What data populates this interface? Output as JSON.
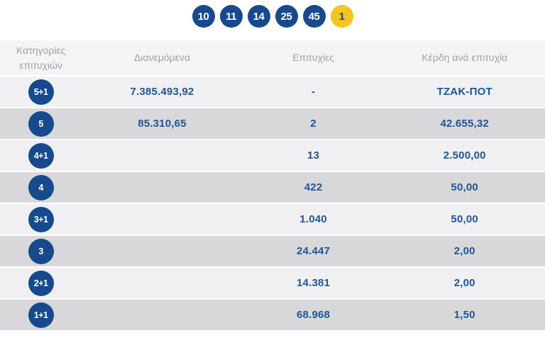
{
  "colors": {
    "navy": "#17498d",
    "yellow": "#f5c41e",
    "text-blue": "#1e5697",
    "header-bg": "#f4f4f5",
    "header-text": "#9fa1a4",
    "row-light": "#f0f0f2",
    "row-dark": "#d8d8da"
  },
  "draw": {
    "numbers": [
      "10",
      "11",
      "14",
      "25",
      "45"
    ],
    "joker": "1"
  },
  "table": {
    "headers": [
      "Κατηγορίες επιτυχιών",
      "Διανεμόμενα",
      "Επιτυχίες",
      "Κέρδη ανά επιτυχία"
    ],
    "rows": [
      {
        "category": "5+1",
        "distributed": "7.385.493,92",
        "wins": "-",
        "prize": "ΤΖΑΚ-ΠΟΤ"
      },
      {
        "category": "5",
        "distributed": "85.310,65",
        "wins": "2",
        "prize": "42.655,32"
      },
      {
        "category": "4+1",
        "distributed": "",
        "wins": "13",
        "prize": "2.500,00"
      },
      {
        "category": "4",
        "distributed": "",
        "wins": "422",
        "prize": "50,00"
      },
      {
        "category": "3+1",
        "distributed": "",
        "wins": "1.040",
        "prize": "50,00"
      },
      {
        "category": "3",
        "distributed": "",
        "wins": "24.447",
        "prize": "2,00"
      },
      {
        "category": "2+1",
        "distributed": "",
        "wins": "14.381",
        "prize": "2,00"
      },
      {
        "category": "1+1",
        "distributed": "",
        "wins": "68.968",
        "prize": "1,50"
      }
    ]
  }
}
